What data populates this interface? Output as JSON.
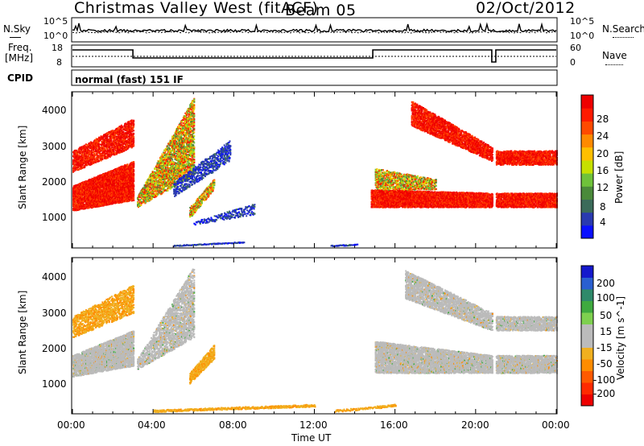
{
  "header": {
    "station": "Christmas Valley West (fitACF)",
    "beam": "Beam 05",
    "date": "02/Oct/2012"
  },
  "side_labels": {
    "nsky": "N.Sky",
    "nsearch": "N.Search",
    "freq_line1": "Freq.",
    "freq_line2": "[MHz]",
    "nave": "Nave",
    "cpid": "CPID",
    "cpid_value": "normal (fast) 151 IF"
  },
  "noise_axis": {
    "left_ticks": [
      "10^5",
      "10^0"
    ],
    "right_ticks": [
      "10^5",
      "10^0"
    ]
  },
  "freq_axis": {
    "left_ticks": [
      "18",
      "8"
    ],
    "right_ticks": [
      "60",
      "0"
    ]
  },
  "x_axis": {
    "label": "Time UT",
    "ticks": [
      "00:00",
      "04:00",
      "08:00",
      "12:00",
      "16:00",
      "20:00",
      "00:00"
    ],
    "range_hours": [
      0,
      24
    ]
  },
  "chart_data": [
    {
      "type": "heatmap",
      "panel": "power",
      "ylabel": "Slant Range [km]",
      "yticks": [
        1000,
        2000,
        3000,
        4000
      ],
      "ylim": [
        180,
        4500
      ],
      "xlim": [
        0,
        24
      ],
      "colorbar": {
        "label": "Power [dB]",
        "ticks": [
          4,
          8,
          12,
          16,
          20,
          24,
          28
        ],
        "range": [
          0,
          30
        ],
        "colors": [
          "#0a10ff",
          "#2a3ab0",
          "#3b6b5a",
          "#4a8a3a",
          "#6fc23a",
          "#c6e000",
          "#ffbf00",
          "#ff8a00",
          "#ff4a00",
          "#ff1a00",
          "#ee0000"
        ]
      }
    },
    {
      "type": "heatmap",
      "panel": "velocity",
      "ylabel": "Slant Range [km]",
      "yticks": [
        1000,
        2000,
        3000,
        4000
      ],
      "ylim": [
        180,
        4500
      ],
      "xlim": [
        0,
        24
      ],
      "colorbar": {
        "label": "Velocity [m s^-1]",
        "ticks": [
          200,
          100,
          50,
          15,
          -15,
          -50,
          -100,
          -200
        ],
        "range": [
          -250,
          250
        ],
        "colors": [
          "#1418cc",
          "#2a5fd0",
          "#2f8a6a",
          "#3faa3f",
          "#7ed04f",
          "#bbbbbb",
          "#bbbbbb",
          "#f0b020",
          "#ff8c00",
          "#ff5a00",
          "#ff2a00",
          "#ee0000"
        ]
      }
    }
  ]
}
